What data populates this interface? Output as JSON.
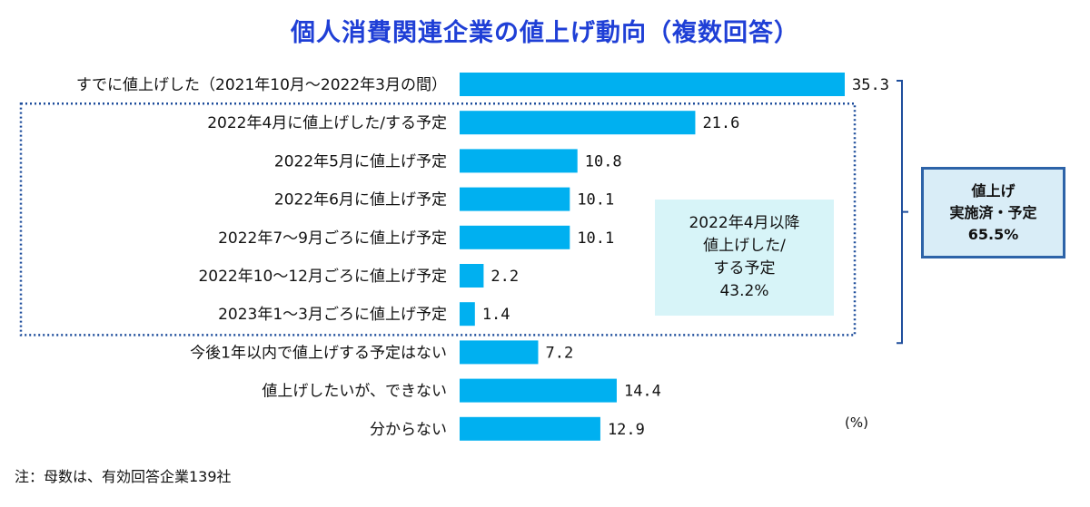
{
  "title": "個人消費関連企業の値上げ動向（複数回答）",
  "chart_data": {
    "type": "bar",
    "orientation": "horizontal",
    "categories": [
      "すでに値上げした（2021年10月～2022年3月の間）",
      "2022年4月に値上げした/する予定",
      "2022年5月に値上げ予定",
      "2022年6月に値上げ予定",
      "2022年7～9月ごろに値上げ予定",
      "2022年10～12月ごろに値上げ予定",
      "2023年1～3月ごろに値上げ予定",
      "今後1年以内で値上げする予定はない",
      "値上げしたいが、できない",
      "分からない"
    ],
    "values": [
      35.3,
      21.6,
      10.8,
      10.1,
      10.1,
      2.2,
      1.4,
      7.2,
      14.4,
      12.9
    ],
    "value_labels": [
      "35.3",
      "21.6",
      "10.8",
      "10.1",
      "10.1",
      "2.2",
      "1.4",
      "7.2",
      "14.4",
      "12.9"
    ],
    "xlim": [
      0,
      36
    ],
    "unit_label": "(%)",
    "bar_color": "#00b0f0",
    "grid": false
  },
  "annotations": {
    "inner_box_lines": [
      "2022年4月以降",
      "値上げした/",
      "する予定",
      "43.2%"
    ],
    "total_box_lines": [
      "値上げ",
      "実施済・予定",
      "65.5%"
    ],
    "dotted_group_color": "#1f4e9c",
    "bracket_color": "#1f4e9c"
  },
  "footnote": "注：母数は、有効回答企業139社"
}
